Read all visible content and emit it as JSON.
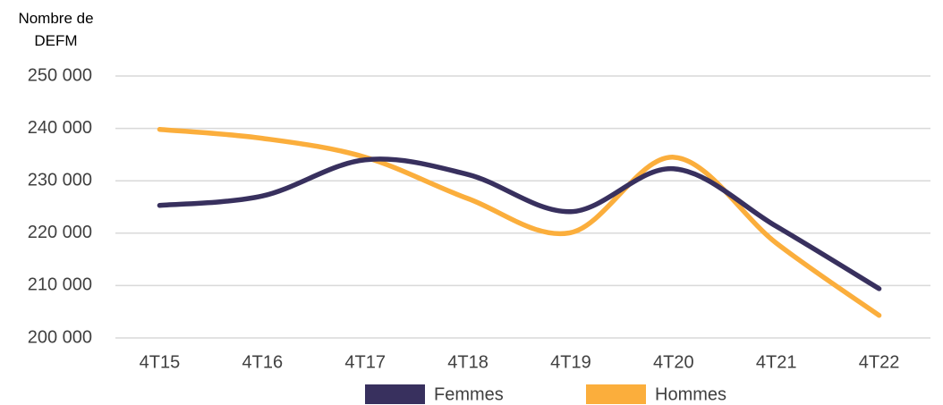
{
  "chart_data": {
    "type": "line",
    "y_label": "Nombre de DEFM",
    "categories": [
      "4T15",
      "4T16",
      "4T17",
      "4T18",
      "4T19",
      "4T20",
      "4T21",
      "4T22"
    ],
    "series": [
      {
        "name": "Femmes",
        "color": "#38305e",
        "values": [
          225300,
          227100,
          234000,
          231200,
          224100,
          232300,
          221300,
          209400
        ]
      },
      {
        "name": "Hommes",
        "color": "#fbae3c",
        "values": [
          239800,
          238100,
          234500,
          226600,
          220100,
          234500,
          218100,
          204300
        ]
      }
    ],
    "ylim": [
      200000,
      250000
    ],
    "yticks": [
      {
        "value": 200000,
        "label": "200 000"
      },
      {
        "value": 210000,
        "label": "210 000"
      },
      {
        "value": 220000,
        "label": "220 000"
      },
      {
        "value": 230000,
        "label": "230 000"
      },
      {
        "value": 240000,
        "label": "240 000"
      },
      {
        "value": 250000,
        "label": "250 000"
      }
    ],
    "grid": true,
    "legend": "bottom"
  }
}
